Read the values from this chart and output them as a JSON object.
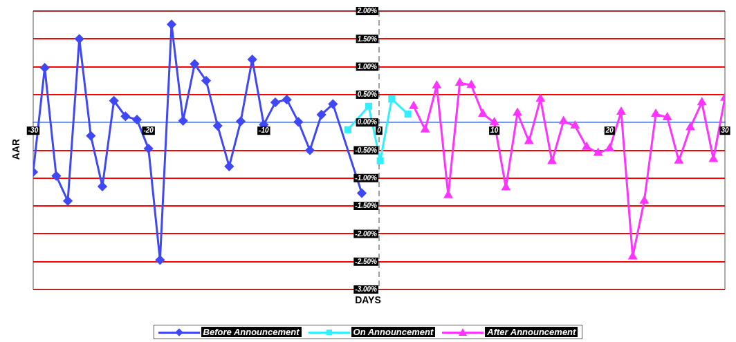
{
  "chart_data": {
    "type": "line",
    "xlabel": "DAYS",
    "ylabel": "AAR",
    "xlim": [
      -30,
      30
    ],
    "xticks": [
      -30,
      -20,
      -10,
      0,
      10,
      20,
      30
    ],
    "ylim": [
      -3,
      2
    ],
    "yticks": [
      {
        "value": -3,
        "label": "-3.00%"
      },
      {
        "value": -2.5,
        "label": "-2.50%"
      },
      {
        "value": -2,
        "label": "-2.00%"
      },
      {
        "value": -1.5,
        "label": "-1.50%"
      },
      {
        "value": -1,
        "label": "-1.00%"
      },
      {
        "value": -0.5,
        "label": "-0.50%"
      },
      {
        "value": 0,
        "label": "0.00%"
      },
      {
        "value": 0.5,
        "label": "0.50%"
      },
      {
        "value": 1,
        "label": "1.00%"
      },
      {
        "value": 1.5,
        "label": "1.50%"
      },
      {
        "value": 2,
        "label": "2.00%"
      }
    ],
    "grid": "y",
    "legend": "bottom",
    "ref_lines": [
      {
        "axis": "x",
        "value": 0,
        "color": "#444444",
        "line_style": "dashed"
      }
    ],
    "series": [
      {
        "name": "Before Announcement",
        "color": "#3f48f4",
        "marker": "diamond",
        "x": [
          -30,
          -29,
          -28,
          -27,
          -26,
          -25,
          -24,
          -23,
          -22,
          -21,
          -20,
          -19,
          -18,
          -17,
          -16,
          -15,
          -14,
          -13,
          -12,
          -11,
          -10,
          -9,
          -8,
          -7,
          -6,
          -5,
          -4,
          -1.5
        ],
        "values": [
          -0.89,
          0.98,
          -0.96,
          -1.41,
          1.5,
          -0.24,
          -1.15,
          0.39,
          0.11,
          0.05,
          -0.47,
          -2.47,
          1.76,
          0.03,
          1.05,
          0.75,
          -0.06,
          -0.79,
          0.02,
          1.13,
          -0.04,
          0.36,
          0.41,
          0.01,
          -0.5,
          0.14,
          0.33,
          -1.27
        ]
      },
      {
        "name": "On Announcement",
        "color": "#33eeff",
        "marker": "square",
        "x": [
          -2.7,
          -0.9,
          0.1,
          1.1,
          2.5
        ],
        "values": [
          -0.13,
          0.29,
          -0.69,
          0.42,
          0.15
        ]
      },
      {
        "name": "After Announcement",
        "color": "#ff33ff",
        "marker": "triangle",
        "x": [
          3,
          4,
          5,
          6,
          7,
          8,
          9,
          10,
          11,
          12,
          13,
          14,
          15,
          16,
          17,
          18,
          19,
          20,
          21,
          22,
          23,
          24,
          25,
          26,
          27,
          28,
          29,
          30
        ],
        "values": [
          0.29,
          -0.13,
          0.66,
          -1.31,
          0.71,
          0.67,
          0.15,
          0,
          -1.17,
          0.17,
          -0.34,
          0.42,
          -0.7,
          0.02,
          -0.06,
          -0.44,
          -0.55,
          -0.47,
          0.19,
          -2.41,
          -1.41,
          0.15,
          0.09,
          -0.69,
          -0.09,
          0.36,
          -0.66,
          0.44
        ]
      }
    ]
  }
}
